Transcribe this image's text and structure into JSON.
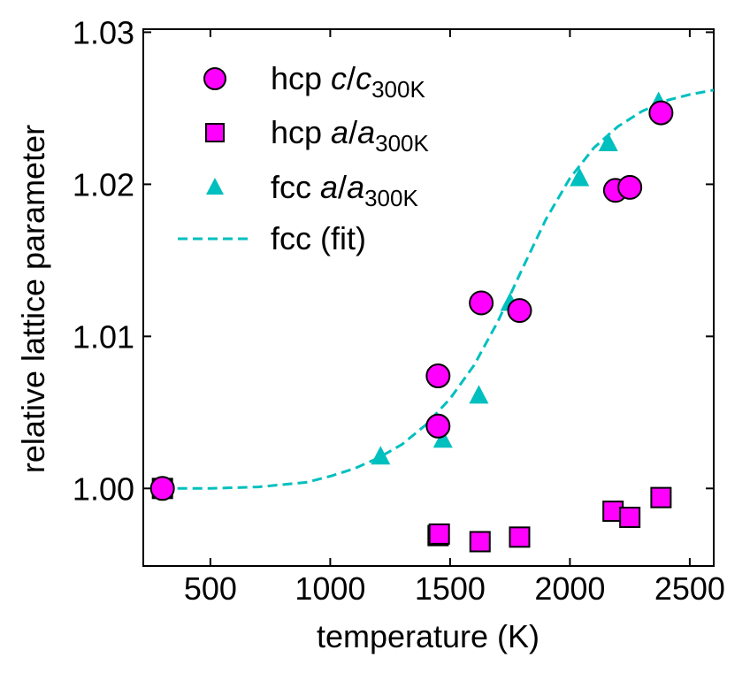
{
  "chart_data": {
    "type": "scatter",
    "title": "",
    "xlabel": "temperature (K)",
    "ylabel": "relative lattice parameter",
    "xlim": [
      220,
      2600
    ],
    "ylim": [
      0.9949,
      1.0302
    ],
    "xticks": [
      500,
      1000,
      1500,
      2000,
      2500
    ],
    "xtick_labels": [
      "500",
      "1000",
      "1500",
      "2000",
      "2500"
    ],
    "yticks": [
      1.0,
      1.01,
      1.02,
      1.03
    ],
    "ytick_labels": [
      "1.00",
      "1.01",
      "1.02",
      "1.03"
    ],
    "legend_position": "upper-left",
    "series": [
      {
        "name": "hcp c/c300K",
        "legend": {
          "prefix": "hcp ",
          "var": "c",
          "sep": "/",
          "var2": "c",
          "sub": "300K"
        },
        "marker": "circle",
        "color": "#ff00ff",
        "edge_color": "#000000",
        "x": [
          300,
          1450,
          1450,
          1630,
          1790,
          2190,
          2250,
          2380
        ],
        "y": [
          1.0,
          1.0074,
          1.0041,
          1.0122,
          1.0117,
          1.0196,
          1.0198,
          1.0247
        ]
      },
      {
        "name": "hcp a/a300K",
        "legend": {
          "prefix": "hcp ",
          "var": "a",
          "sep": "/",
          "var2": "a",
          "sub": "300K"
        },
        "marker": "square",
        "color": "#ff00ff",
        "edge_color": "#000000",
        "x": [
          300,
          1450,
          1455,
          1625,
          1790,
          2180,
          2250,
          2380
        ],
        "y": [
          1.0,
          0.9969,
          0.997,
          0.9965,
          0.9968,
          0.9985,
          0.9981,
          0.9994
        ]
      },
      {
        "name": "fcc a/a300K",
        "legend": {
          "prefix": "fcc ",
          "var": "a",
          "sep": "/",
          "var2": "a",
          "sub": "300K"
        },
        "marker": "triangle",
        "color": "#00bfbf",
        "x": [
          300,
          1210,
          1470,
          1620,
          1750,
          2040,
          2160,
          2370
        ],
        "y": [
          1.0,
          1.0021,
          1.0032,
          1.0061,
          1.0122,
          1.0204,
          1.0227,
          1.0254
        ]
      },
      {
        "name": "fcc (fit)",
        "legend": {
          "prefix": "fcc (fit)"
        },
        "marker": "dashed-line",
        "color": "#00bfbf",
        "x": [
          300,
          500,
          700,
          900,
          1000,
          1100,
          1200,
          1300,
          1400,
          1500,
          1600,
          1700,
          1800,
          1900,
          2000,
          2100,
          2200,
          2300,
          2400,
          2500,
          2600
        ],
        "y": [
          1.0,
          1.0,
          1.0001,
          1.0004,
          1.0008,
          1.0013,
          1.002,
          1.0029,
          1.0042,
          1.0059,
          1.0081,
          1.011,
          1.0144,
          1.0177,
          1.0204,
          1.0224,
          1.0238,
          1.0248,
          1.0255,
          1.0259,
          1.0262
        ]
      }
    ]
  }
}
